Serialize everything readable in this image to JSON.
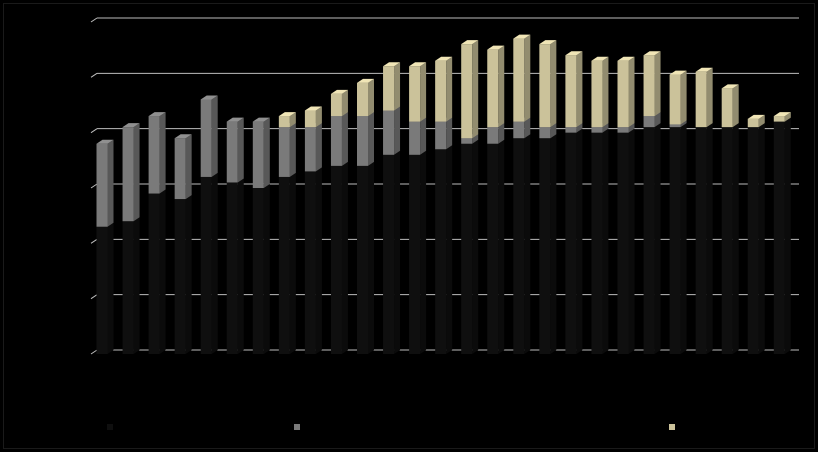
{
  "chart_data": {
    "type": "bar",
    "stacked": true,
    "three_d": true,
    "categories": [
      "",
      "",
      "",
      "",
      "",
      "",
      "",
      "",
      "",
      "",
      "",
      "",
      "",
      "",
      "",
      "",
      "",
      "",
      "",
      "",
      "",
      "",
      "",
      "",
      "",
      "",
      ""
    ],
    "series": [
      {
        "color": "#0f0f0f",
        "values": [
          23,
          24,
          29,
          28,
          32,
          31,
          30,
          32,
          33,
          34,
          34,
          36,
          36,
          37,
          38,
          38,
          39,
          39,
          40,
          40,
          40,
          41,
          41,
          41,
          41,
          41,
          42
        ]
      },
      {
        "color": "#7a7a7a",
        "values": [
          15,
          17,
          14,
          11,
          14,
          11,
          12,
          9,
          8,
          9,
          9,
          8,
          6,
          5,
          1,
          3,
          3,
          2,
          1,
          1,
          1,
          2,
          0.5,
          0,
          0,
          0,
          0
        ]
      },
      {
        "color": "#cbc29a",
        "values": [
          0,
          0,
          0,
          0,
          0,
          0,
          0,
          2,
          3,
          4,
          6,
          8,
          10,
          11,
          17,
          14,
          15,
          15,
          13,
          12,
          12,
          11,
          9,
          10,
          7,
          1.5,
          1
        ]
      }
    ],
    "ylim": [
      0,
      60
    ],
    "grid": true,
    "legend_position": "bottom",
    "legend_entries": [
      "",
      "",
      ""
    ]
  },
  "colors": {
    "background": "#000000",
    "gridline": "#bdbdbd"
  }
}
